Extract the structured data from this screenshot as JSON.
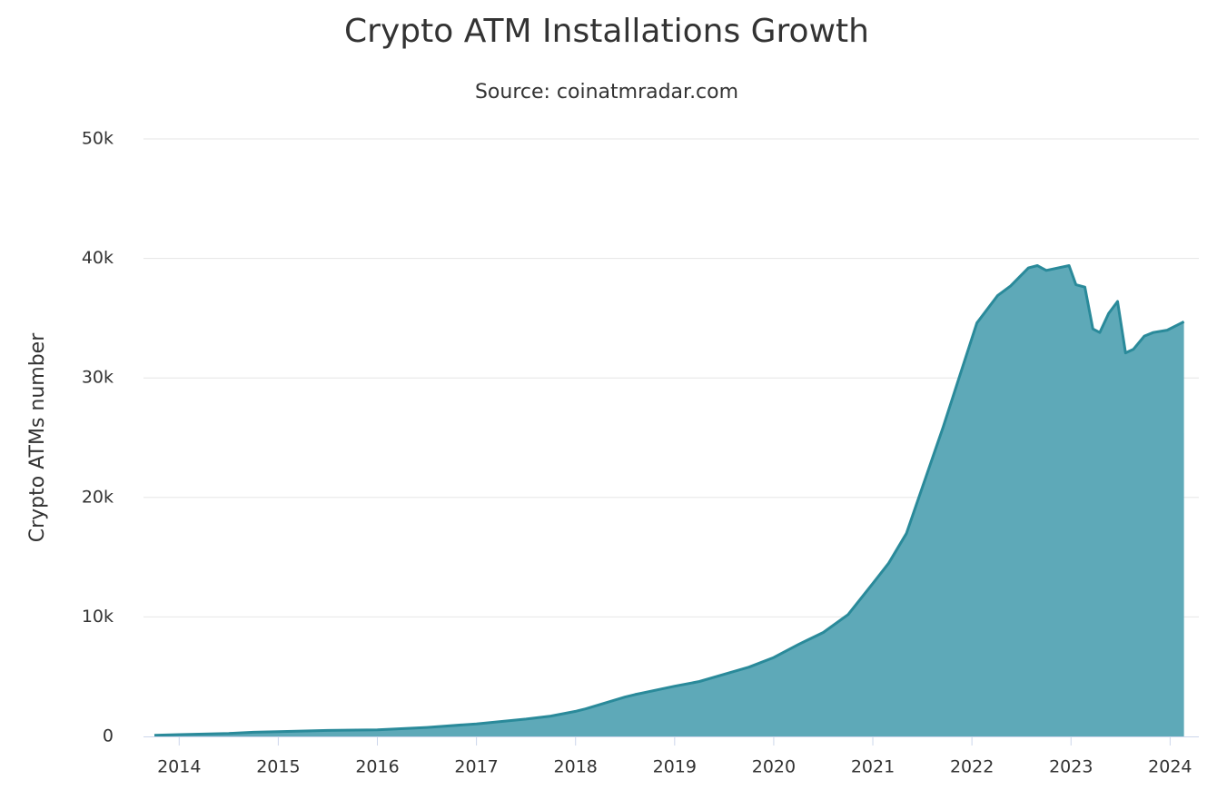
{
  "chart_data": {
    "type": "area",
    "title": "Crypto ATM Installations Growth",
    "subtitle": "Source: coinatmradar.com",
    "y_label": "Crypto ATMs number",
    "color": "#5ea9b8",
    "line_color": "#2a8a9a",
    "grid": true,
    "xlim": [
      2013.64,
      2024.29
    ],
    "xticks": [
      2014,
      2015,
      2016,
      2017,
      2018,
      2019,
      2020,
      2021,
      2022,
      2023,
      2024
    ],
    "ylim": [
      0,
      50000
    ],
    "yticks": [
      0,
      {
        "value": 10000,
        "label": "10k"
      },
      {
        "value": 20000,
        "label": "20k"
      },
      {
        "value": 30000,
        "label": "30k"
      },
      {
        "value": 40000,
        "label": "40k"
      },
      {
        "value": 50000,
        "label": "50k"
      }
    ],
    "x": [
      2013.75,
      2014.0,
      2014.5,
      2014.75,
      2015.0,
      2015.5,
      2016.0,
      2016.5,
      2017.0,
      2017.5,
      2017.75,
      2018.0,
      2018.1,
      2018.5,
      2018.6,
      2019.0,
      2019.25,
      2019.5,
      2019.75,
      2020.0,
      2020.25,
      2020.5,
      2020.75,
      2021.0,
      2021.16,
      2021.34,
      2021.71,
      2021.89,
      2022.05,
      2022.26,
      2022.39,
      2022.57,
      2022.66,
      2022.75,
      2022.98,
      2023.05,
      2023.14,
      2023.22,
      2023.29,
      2023.38,
      2023.47,
      2023.55,
      2023.63,
      2023.74,
      2023.83,
      2023.97,
      2024.14
    ],
    "values": [
      100,
      150,
      250,
      350,
      400,
      500,
      550,
      750,
      1050,
      1450,
      1700,
      2100,
      2300,
      3300,
      3500,
      4200,
      4600,
      5200,
      5800,
      6600,
      7700,
      8700,
      10200,
      12800,
      14500,
      17000,
      25900,
      30500,
      34600,
      36900,
      37700,
      39200,
      39400,
      39000,
      39400,
      37800,
      37600,
      34100,
      33800,
      35400,
      36400,
      32100,
      32400,
      33500,
      33800,
      34000,
      34700
    ]
  }
}
